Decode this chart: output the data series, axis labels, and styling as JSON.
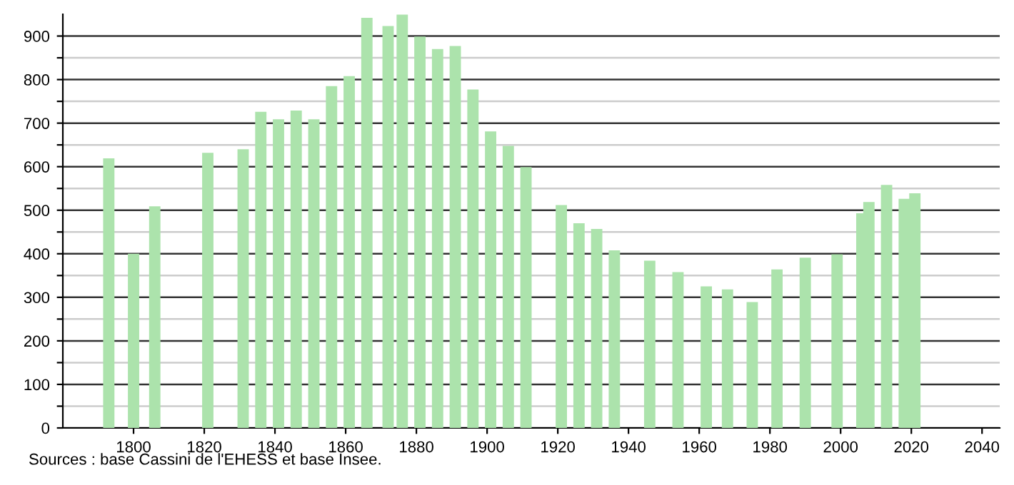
{
  "chart_data": {
    "type": "bar",
    "x": [
      1793,
      1800,
      1806,
      1821,
      1831,
      1836,
      1841,
      1846,
      1851,
      1856,
      1861,
      1866,
      1872,
      1876,
      1881,
      1886,
      1891,
      1896,
      1901,
      1906,
      1911,
      1921,
      1926,
      1931,
      1936,
      1946,
      1954,
      1962,
      1968,
      1975,
      1982,
      1990,
      1999,
      2006,
      2008,
      2013,
      2018,
      2021
    ],
    "values": [
      619,
      400,
      509,
      632,
      640,
      726,
      709,
      729,
      709,
      785,
      808,
      942,
      923,
      949,
      899,
      870,
      877,
      777,
      681,
      648,
      599,
      512,
      470,
      457,
      408,
      384,
      358,
      325,
      318,
      289,
      364,
      391,
      399,
      493,
      519,
      558,
      526,
      539
    ],
    "color": "#ace3ac",
    "xlim": [
      1780,
      2045
    ],
    "xticks": [
      1800,
      1820,
      1840,
      1860,
      1880,
      1900,
      1920,
      1940,
      1960,
      1980,
      2000,
      2020,
      2040
    ],
    "ylim": [
      0,
      950
    ],
    "yticks": [
      0,
      {
        "value": 50,
        "label": null
      },
      100,
      {
        "value": 150,
        "label": null
      },
      200,
      {
        "value": 250,
        "label": null
      },
      300,
      {
        "value": 350,
        "label": null
      },
      400,
      {
        "value": 450,
        "label": null
      },
      500,
      {
        "value": 550,
        "label": null
      },
      600,
      {
        "value": 650,
        "label": null
      },
      700,
      {
        "value": 750,
        "label": null
      },
      800,
      {
        "value": 850,
        "label": null
      },
      900
    ],
    "grid": "y",
    "annotations": [
      "Sources : base Cassini de l'EHESS et base Insee."
    ]
  }
}
